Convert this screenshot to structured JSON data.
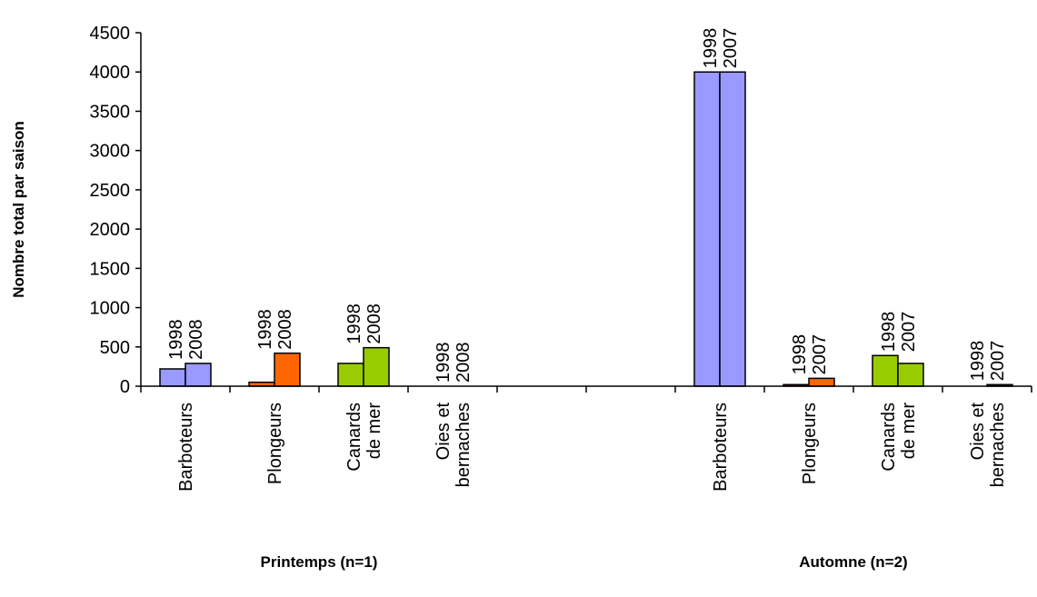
{
  "chart_data": {
    "type": "bar",
    "ylabel": "Nombre total par saison",
    "ylim": [
      0,
      4500
    ],
    "yticks": [
      0,
      500,
      1000,
      1500,
      2000,
      2500,
      3000,
      3500,
      4000,
      4500
    ],
    "grid": false,
    "legend": "none",
    "colors": {
      "Barboteurs": "#9999ff",
      "Plongeurs": "#ff6600",
      "Canards de mer": "#99cc00",
      "Oies et bernaches": "#000000"
    },
    "slots": [
      {
        "category": "Barboteurs",
        "label_lines": [
          "Barboteurs"
        ],
        "years": [
          "1998",
          "2008"
        ],
        "values": [
          220,
          290
        ]
      },
      {
        "category": "Plongeurs",
        "label_lines": [
          "Plongeurs"
        ],
        "years": [
          "1998",
          "2008"
        ],
        "values": [
          50,
          420
        ]
      },
      {
        "category": "Canards de mer",
        "label_lines": [
          "Canards",
          "de mer"
        ],
        "years": [
          "1998",
          "2008"
        ],
        "values": [
          290,
          490
        ]
      },
      {
        "category": "Oies et bernaches",
        "label_lines": [
          "Oies et",
          "bernaches"
        ],
        "years": [
          "1998",
          "2008"
        ],
        "values": [
          0,
          0
        ]
      },
      {
        "category": null,
        "label_lines": [],
        "years": [],
        "values": []
      },
      {
        "category": null,
        "label_lines": [],
        "years": [],
        "values": []
      },
      {
        "category": "Barboteurs",
        "label_lines": [
          "Barboteurs"
        ],
        "years": [
          "1998",
          "2007"
        ],
        "values": [
          4000,
          4000
        ]
      },
      {
        "category": "Plongeurs",
        "label_lines": [
          "Plongeurs"
        ],
        "years": [
          "1998",
          "2007"
        ],
        "values": [
          20,
          100
        ]
      },
      {
        "category": "Canards de mer",
        "label_lines": [
          "Canards",
          "de mer"
        ],
        "years": [
          "1998",
          "2007"
        ],
        "values": [
          390,
          290
        ]
      },
      {
        "category": "Oies et bernaches",
        "label_lines": [
          "Oies et",
          "bernaches"
        ],
        "years": [
          "1998",
          "2007"
        ],
        "values": [
          0,
          20
        ]
      }
    ],
    "groups": [
      "Printemps (n=1)",
      "Automne (n=2)"
    ]
  }
}
